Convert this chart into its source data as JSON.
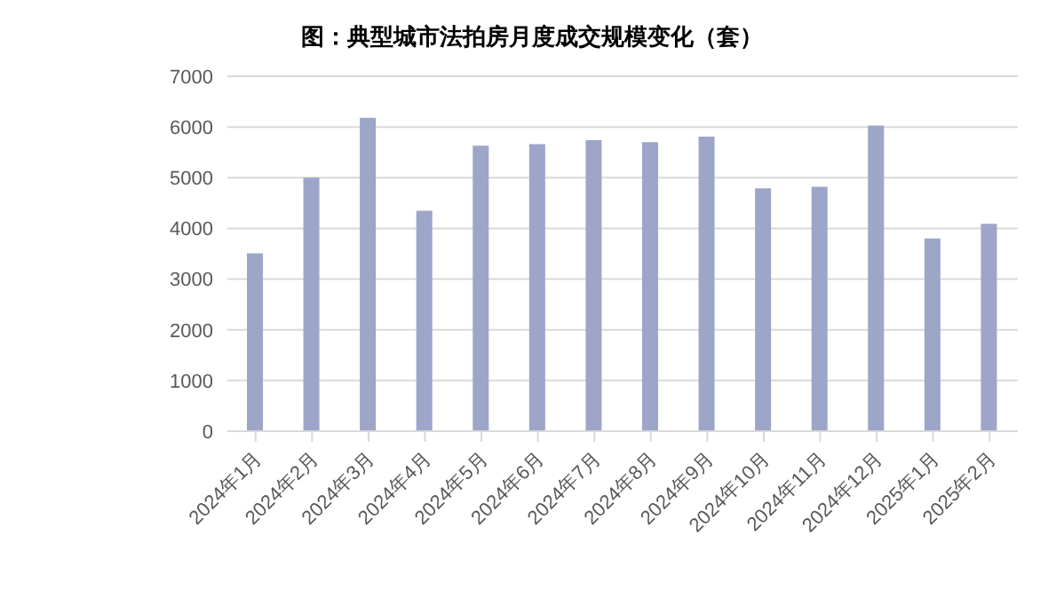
{
  "chart_data": {
    "type": "bar",
    "title": "图：典型城市法拍房月度成交规模变化（套）",
    "categories": [
      "2024年1月",
      "2024年2月",
      "2024年3月",
      "2024年4月",
      "2024年5月",
      "2024年6月",
      "2024年7月",
      "2024年8月",
      "2024年9月",
      "2024年10月",
      "2024年11月",
      "2024年12月",
      "2025年1月",
      "2025年2月"
    ],
    "values": [
      3510,
      5000,
      6180,
      4350,
      5630,
      5660,
      5740,
      5700,
      5810,
      4790,
      4820,
      6030,
      3800,
      4090
    ],
    "color": "#9da5c9",
    "ylim": [
      0,
      7000
    ],
    "yticks": [
      0,
      1000,
      2000,
      3000,
      4000,
      5000,
      6000,
      7000
    ],
    "grid": "y",
    "legend": false
  }
}
